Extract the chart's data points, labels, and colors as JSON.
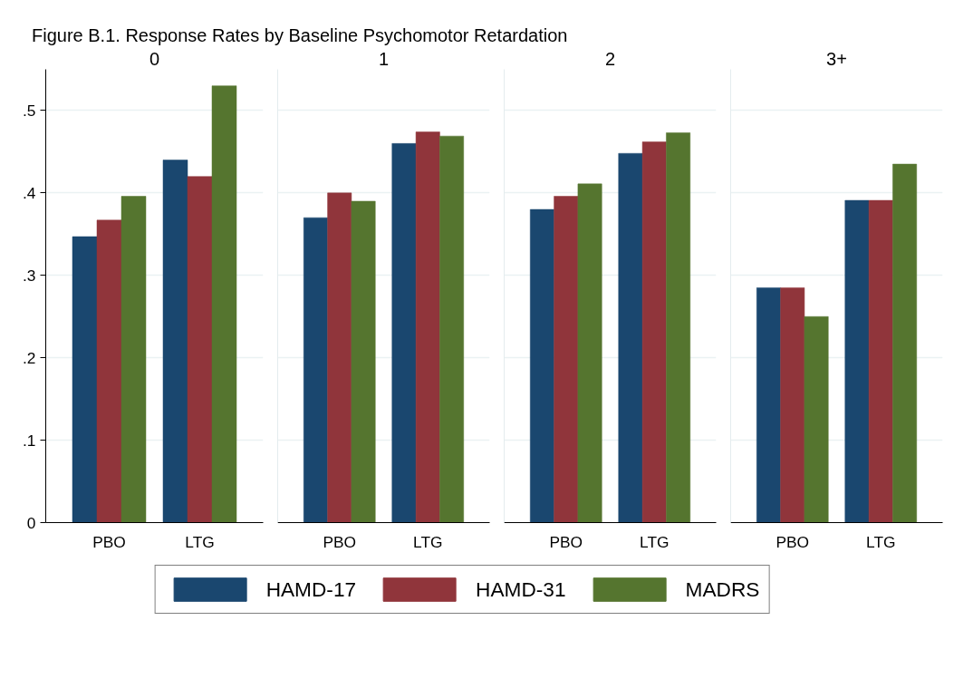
{
  "chart_data": [
    {
      "type": "bar",
      "title": "Figure B.1. Response Rates by Baseline Psychomotor Retardation",
      "subtitle": "0",
      "categories": [
        "PBO",
        "LTG"
      ],
      "legend": "bottom",
      "grid": "y",
      "ylim": [
        0,
        0.55
      ],
      "yticks": [
        0,
        {
          "value": 0.1,
          "label": ".1"
        },
        {
          "value": 0.2,
          "label": ".2"
        },
        {
          "value": 0.3,
          "label": ".3"
        },
        {
          "value": 0.4,
          "label": ".4"
        },
        {
          "value": 0.5,
          "label": ".5"
        }
      ],
      "series": [
        {
          "name": "HAMD-17",
          "color": "#1a476f",
          "values": [
            0.347,
            0.44
          ]
        },
        {
          "name": "HAMD-31",
          "color": "#90353b",
          "values": [
            0.367,
            0.42
          ]
        },
        {
          "name": "MADRS",
          "color": "#55752f",
          "values": [
            0.396,
            0.53
          ]
        }
      ]
    },
    {
      "type": "bar",
      "subtitle": "1",
      "categories": [
        "PBO",
        "LTG"
      ],
      "grid": "y",
      "tick_labels": "x",
      "ylim": [
        0,
        0.55
      ],
      "yticks": [
        {
          "value": 0,
          "label": null
        },
        {
          "value": 0.1,
          "label": null
        },
        {
          "value": 0.2,
          "label": null
        },
        {
          "value": 0.3,
          "label": null
        },
        {
          "value": 0.4,
          "label": null
        },
        {
          "value": 0.5,
          "label": null
        }
      ],
      "series": [
        {
          "color": "#1a476f",
          "values": [
            0.37,
            0.46
          ]
        },
        {
          "color": "#90353b",
          "values": [
            0.4,
            0.474
          ]
        },
        {
          "color": "#55752f",
          "values": [
            0.39,
            0.469
          ]
        }
      ]
    },
    {
      "type": "bar",
      "subtitle": "2",
      "categories": [
        "PBO",
        "LTG"
      ],
      "grid": "y",
      "tick_labels": "x",
      "ylim": [
        0,
        0.55
      ],
      "yticks": [
        {
          "value": 0,
          "label": null
        },
        {
          "value": 0.1,
          "label": null
        },
        {
          "value": 0.2,
          "label": null
        },
        {
          "value": 0.3,
          "label": null
        },
        {
          "value": 0.4,
          "label": null
        },
        {
          "value": 0.5,
          "label": null
        }
      ],
      "series": [
        {
          "color": "#1a476f",
          "values": [
            0.38,
            0.448
          ]
        },
        {
          "color": "#90353b",
          "values": [
            0.396,
            0.462
          ]
        },
        {
          "color": "#55752f",
          "values": [
            0.411,
            0.473
          ]
        }
      ]
    },
    {
      "type": "bar",
      "subtitle": "3+",
      "categories": [
        "PBO",
        "LTG"
      ],
      "grid": "y",
      "tick_labels": "x",
      "ylim": [
        0,
        0.55
      ],
      "yticks": [
        {
          "value": 0,
          "label": null
        },
        {
          "value": 0.1,
          "label": null
        },
        {
          "value": 0.2,
          "label": null
        },
        {
          "value": 0.3,
          "label": null
        },
        {
          "value": 0.4,
          "label": null
        },
        {
          "value": 0.5,
          "label": null
        }
      ],
      "series": [
        {
          "color": "#1a476f",
          "values": [
            0.285,
            0.391
          ]
        },
        {
          "color": "#90353b",
          "values": [
            0.285,
            0.391
          ]
        },
        {
          "color": "#55752f",
          "values": [
            0.25,
            0.435
          ]
        }
      ]
    }
  ]
}
